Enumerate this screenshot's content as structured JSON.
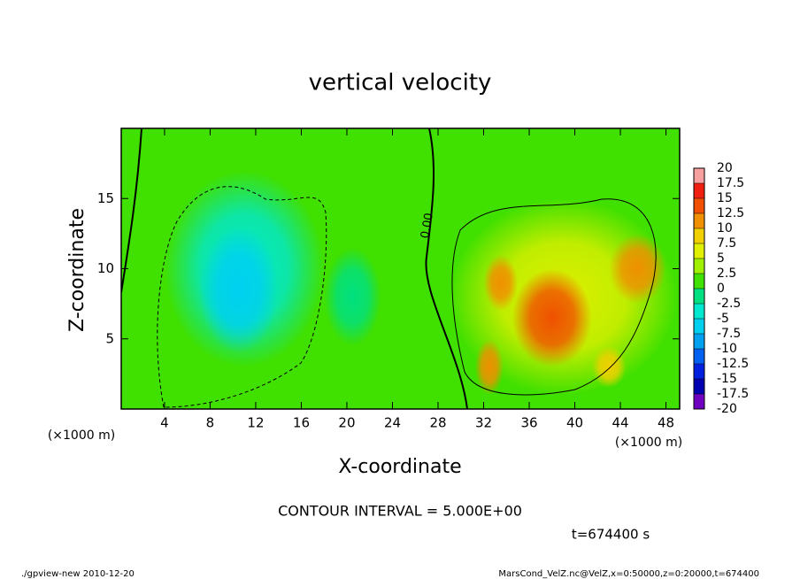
{
  "chart_data": {
    "type": "contour",
    "title": "vertical velocity",
    "x_label": "X-coordinate",
    "y_label": "Z-coordinate",
    "x_unit": "(×1000 m)",
    "y_unit": "(×1000 m)",
    "xlim": [
      0.2,
      49.2
    ],
    "ylim": [
      0,
      20
    ],
    "xticks": [
      4,
      8,
      12,
      16,
      20,
      24,
      28,
      32,
      36,
      40,
      44,
      48
    ],
    "yticks": [
      5,
      10,
      15
    ],
    "contour_interval_text": "CONTOUR INTERVAL = 5.000E+00",
    "time_text": "t=674400 s",
    "contour_label": "0.00",
    "footer_left": "./gpview-new  2010-12-20",
    "footer_right": "MarsCond_VelZ.nc@VelZ,x=0:50000,z=0:20000,t=674400",
    "colorbar": {
      "levels": [
        -20,
        -17.5,
        -15,
        -12.5,
        -10,
        -7.5,
        -5,
        -2.5,
        0,
        2.5,
        5,
        7.5,
        10,
        12.5,
        15,
        17.5,
        20
      ],
      "colors": [
        "#7000c0",
        "#0000b0",
        "#0020e0",
        "#0060f0",
        "#00a0f0",
        "#00d0f0",
        "#00e8d0",
        "#00e080",
        "#40e000",
        "#a0f000",
        "#e0f000",
        "#f0d000",
        "#f09000",
        "#f05000",
        "#f02010",
        "#f8a0a0"
      ]
    },
    "features": [
      {
        "x": 11,
        "z": 10,
        "width": 14,
        "height": 14,
        "value": -5
      },
      {
        "x": 10.5,
        "z": 8.5,
        "width": 7,
        "height": 9,
        "value": -7.5
      },
      {
        "x": 20.5,
        "z": 8,
        "width": 5,
        "height": 7,
        "value": -2.5
      },
      {
        "x": 39,
        "z": 8,
        "width": 20,
        "height": 14,
        "value": 5
      },
      {
        "x": 38,
        "z": 6.5,
        "width": 7,
        "height": 7,
        "value": 12.5
      },
      {
        "x": 45.5,
        "z": 10,
        "width": 5,
        "height": 5,
        "value": 10
      },
      {
        "x": 33.5,
        "z": 9,
        "width": 3,
        "height": 4,
        "value": 10
      },
      {
        "x": 32.5,
        "z": 3,
        "width": 2.5,
        "height": 4,
        "value": 10
      },
      {
        "x": 43,
        "z": 3,
        "width": 3,
        "height": 3,
        "value": 7.5
      }
    ]
  }
}
